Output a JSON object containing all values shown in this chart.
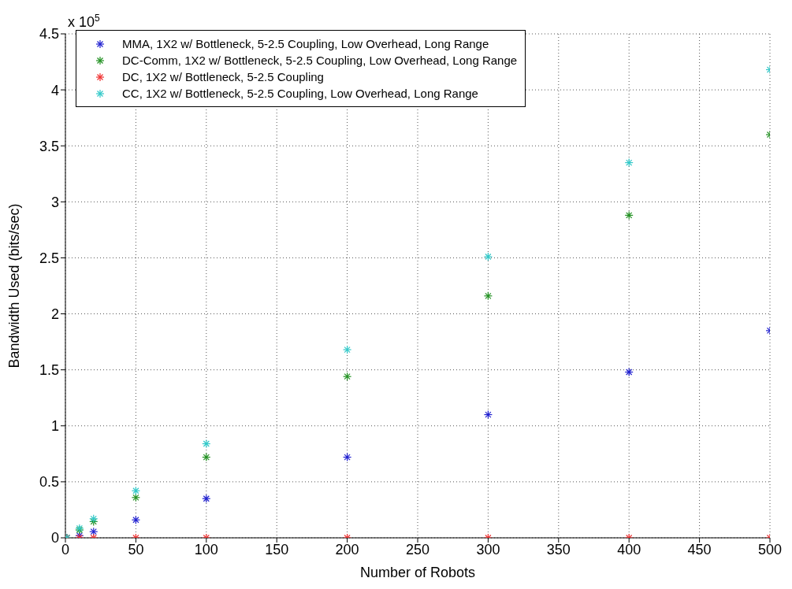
{
  "chart_data": {
    "type": "scatter",
    "xlabel": "Number of Robots",
    "ylabel": "Bandwidth Used (bits/sec)",
    "annotations": [
      "x 10$^{5}$"
    ],
    "x": [
      1,
      10,
      20,
      50,
      100,
      200,
      300,
      400,
      500
    ],
    "series": [
      {
        "name": "MMA, 1X2 w/ Bottleneck, 5-2.5 Coupling, Low Overhead, Long Range",
        "color": "#2020d0",
        "values": [
          0,
          0.02,
          0.055,
          0.16,
          0.35,
          0.72,
          1.1,
          1.48,
          1.85
        ]
      },
      {
        "name": "DC-Comm, 1X2 w/ Bottleneck, 5-2.5 Coupling, Low Overhead, Long Range",
        "color": "#209020",
        "values": [
          0,
          0.07,
          0.145,
          0.36,
          0.72,
          1.44,
          2.16,
          2.88,
          3.6
        ]
      },
      {
        "name": "DC, 1X2 w/ Bottleneck, 5-2.5 Coupling",
        "color": "#f03030",
        "values": [
          0,
          0,
          0,
          0,
          0,
          0,
          0,
          0,
          0
        ]
      },
      {
        "name": "CC, 1X2 w/ Bottleneck, 5-2.5 Coupling, Low Overhead, Long Range",
        "color": "#30c8c8",
        "values": [
          0,
          0.085,
          0.17,
          0.42,
          0.84,
          1.68,
          2.51,
          3.35,
          4.18
        ]
      }
    ],
    "xlim": [
      0,
      500
    ],
    "xticks": [
      0,
      50,
      100,
      150,
      200,
      250,
      300,
      350,
      400,
      450,
      500
    ],
    "ylim": [
      0,
      4.5
    ],
    "yticks": [
      0,
      0.5,
      1,
      1.5,
      2,
      2.5,
      3,
      3.5,
      4,
      4.5
    ],
    "grid": true,
    "legend": "top left",
    "marker": "cross"
  }
}
